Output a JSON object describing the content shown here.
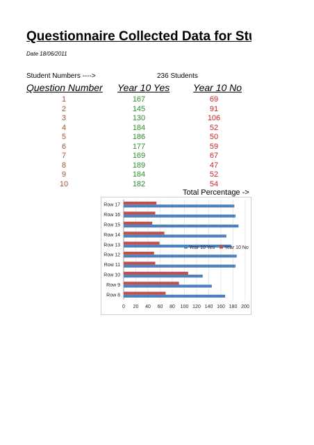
{
  "title": "Questionnaire Collected Data for Stuart B",
  "date": "Date 18/06/2011",
  "students": {
    "label": "Student Numbers ---->",
    "count": "236 Students"
  },
  "headers": {
    "question": "Question Number",
    "yes": "Year 10 Yes",
    "no": "Year 10 No"
  },
  "table": [
    {
      "q": "1",
      "yes": "167",
      "no": "69"
    },
    {
      "q": "2",
      "yes": "145",
      "no": "91"
    },
    {
      "q": "3",
      "yes": "130",
      "no": "106"
    },
    {
      "q": "4",
      "yes": "184",
      "no": "52"
    },
    {
      "q": "5",
      "yes": "186",
      "no": "50"
    },
    {
      "q": "6",
      "yes": "177",
      "no": "59"
    },
    {
      "q": "7",
      "yes": "169",
      "no": "67"
    },
    {
      "q": "8",
      "yes": "189",
      "no": "47"
    },
    {
      "q": "9",
      "yes": "184",
      "no": "52"
    },
    {
      "q": "10",
      "yes": "182",
      "no": "54"
    }
  ],
  "total_label": "Total Percentage ->",
  "colors": {
    "yes_bar": "#4f81bd",
    "no_bar": "#c0504d",
    "q_text": "#a0522d",
    "yes_text": "#2e8b2e",
    "no_text": "#cc2222"
  },
  "chart_data": {
    "type": "bar",
    "orientation": "horizontal",
    "categories": [
      "Row 17",
      "Row 16",
      "Row 15",
      "Row 14",
      "Row 13",
      "Row 12",
      "Row 11",
      "Row 10",
      "Row 9",
      "Row 8"
    ],
    "series": [
      {
        "name": "Year 10 Yes",
        "values": [
          182,
          184,
          189,
          169,
          177,
          186,
          184,
          130,
          145,
          167
        ]
      },
      {
        "name": "Year 10 No",
        "values": [
          54,
          52,
          47,
          67,
          59,
          50,
          52,
          106,
          91,
          69
        ]
      }
    ],
    "xticks": [
      "0",
      "20",
      "40",
      "60",
      "80",
      "100",
      "120",
      "140",
      "160",
      "180",
      "200"
    ],
    "xlim": [
      0,
      200
    ],
    "grid": true,
    "legend": "right"
  }
}
